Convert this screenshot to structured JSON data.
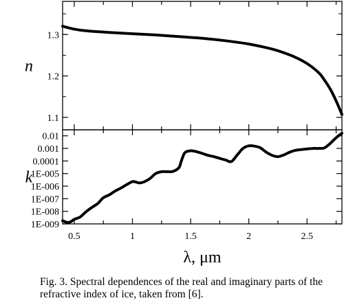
{
  "caption": "Fig. 3. Spectral dependences of the real and imaginary parts of the refractive index of ice, taken from [6].",
  "chart_data": [
    {
      "type": "line",
      "ylabel": "n",
      "xlim": [
        0.4,
        2.8
      ],
      "ylim": [
        1.07,
        1.38
      ],
      "y_ticks": [
        1.1,
        1.2,
        1.3
      ],
      "y_tick_labels": [
        "1.1",
        "1.2",
        "1.3"
      ],
      "series": [
        {
          "x": [
            0.4,
            0.5,
            0.6,
            0.8,
            1.0,
            1.2,
            1.4,
            1.6,
            1.8,
            2.0,
            2.2,
            2.3,
            2.4,
            2.5,
            2.6,
            2.65,
            2.7,
            2.75,
            2.8
          ],
          "y": [
            1.32,
            1.313,
            1.309,
            1.305,
            1.302,
            1.299,
            1.295,
            1.291,
            1.285,
            1.277,
            1.265,
            1.256,
            1.245,
            1.23,
            1.208,
            1.19,
            1.168,
            1.14,
            1.107
          ]
        }
      ]
    },
    {
      "type": "line",
      "ylabel": "k",
      "xlabel": "λ, μm",
      "xlim": [
        0.4,
        2.8
      ],
      "x_ticks": [
        0.5,
        1.0,
        1.5,
        2.0,
        2.5
      ],
      "x_tick_labels": [
        "0.5",
        "1",
        "1.5",
        "2",
        "2.5"
      ],
      "yscale": "log",
      "ylim": [
        1e-09,
        0.03
      ],
      "y_ticks": [
        1e-09,
        1e-08,
        1e-07,
        1e-06,
        1e-05,
        0.0001,
        0.001,
        0.01
      ],
      "y_tick_labels": [
        "1E-009",
        "1E-008",
        "1E-007",
        "1E-006",
        "1E-005",
        "0.0001",
        "0.001",
        "0.01"
      ],
      "series": [
        {
          "x": [
            0.4,
            0.44,
            0.47,
            0.5,
            0.55,
            0.6,
            0.65,
            0.7,
            0.75,
            0.8,
            0.85,
            0.9,
            0.95,
            1.0,
            1.03,
            1.06,
            1.1,
            1.15,
            1.2,
            1.25,
            1.3,
            1.35,
            1.4,
            1.42,
            1.45,
            1.5,
            1.55,
            1.6,
            1.65,
            1.7,
            1.75,
            1.8,
            1.85,
            1.9,
            1.95,
            2.0,
            2.05,
            2.1,
            2.15,
            2.2,
            2.25,
            2.3,
            2.35,
            2.4,
            2.45,
            2.5,
            2.55,
            2.6,
            2.65,
            2.7,
            2.75,
            2.8
          ],
          "y": [
            1.8e-09,
            1.3e-09,
            1.5e-09,
            2.3e-09,
            3.5e-09,
            9e-09,
            2e-08,
            4e-08,
            1.2e-07,
            2e-07,
            4e-07,
            7e-07,
            1.3e-06,
            2.3e-06,
            2.1e-06,
            1.8e-06,
            2.2e-06,
            4e-06,
            1e-05,
            1.4e-05,
            1.4e-05,
            1.5e-05,
            3e-05,
            0.0001,
            0.00045,
            0.00065,
            0.00055,
            0.0004,
            0.00028,
            0.00022,
            0.00016,
            0.00012,
            9e-05,
            0.0003,
            0.001,
            0.0016,
            0.0015,
            0.0011,
            0.0005,
            0.00028,
            0.00022,
            0.0003,
            0.0005,
            0.0007,
            0.0008,
            0.0009,
            0.001,
            0.001,
            0.0011,
            0.0025,
            0.007,
            0.016
          ]
        }
      ]
    }
  ]
}
